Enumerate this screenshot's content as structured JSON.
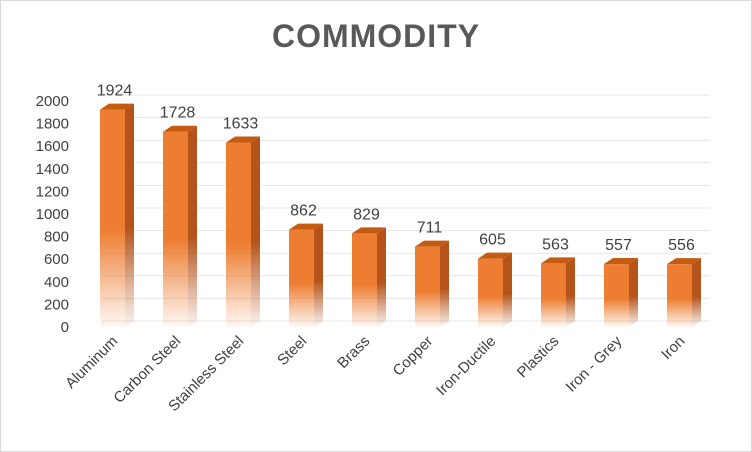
{
  "colors": {
    "bar_front": "#ED7D31",
    "bar_side": "#B4531A",
    "bar_top": "#C55A11",
    "gridline": "#E6E6E6",
    "text": "#404040",
    "title": "#595959"
  },
  "chart_data": {
    "type": "bar",
    "title": "COMMODITY",
    "xlabel": "",
    "ylabel": "",
    "ylim": [
      0,
      2000
    ],
    "yticks": [
      0,
      200,
      400,
      600,
      800,
      1000,
      1200,
      1400,
      1600,
      1800,
      2000
    ],
    "grid": true,
    "legend": "none",
    "categories": [
      "Aluminum",
      "Carbon Steel",
      "Stainless Steel",
      "Steel",
      "Brass",
      "Copper",
      "Iron-Ductile",
      "Plastics",
      "Iron - Grey",
      "Iron"
    ],
    "values": [
      1924,
      1728,
      1633,
      862,
      829,
      711,
      605,
      563,
      557,
      556
    ],
    "data_labels": [
      "1924",
      "1728",
      "1633",
      "862",
      "829",
      "711",
      "605",
      "563",
      "557",
      "556"
    ]
  }
}
